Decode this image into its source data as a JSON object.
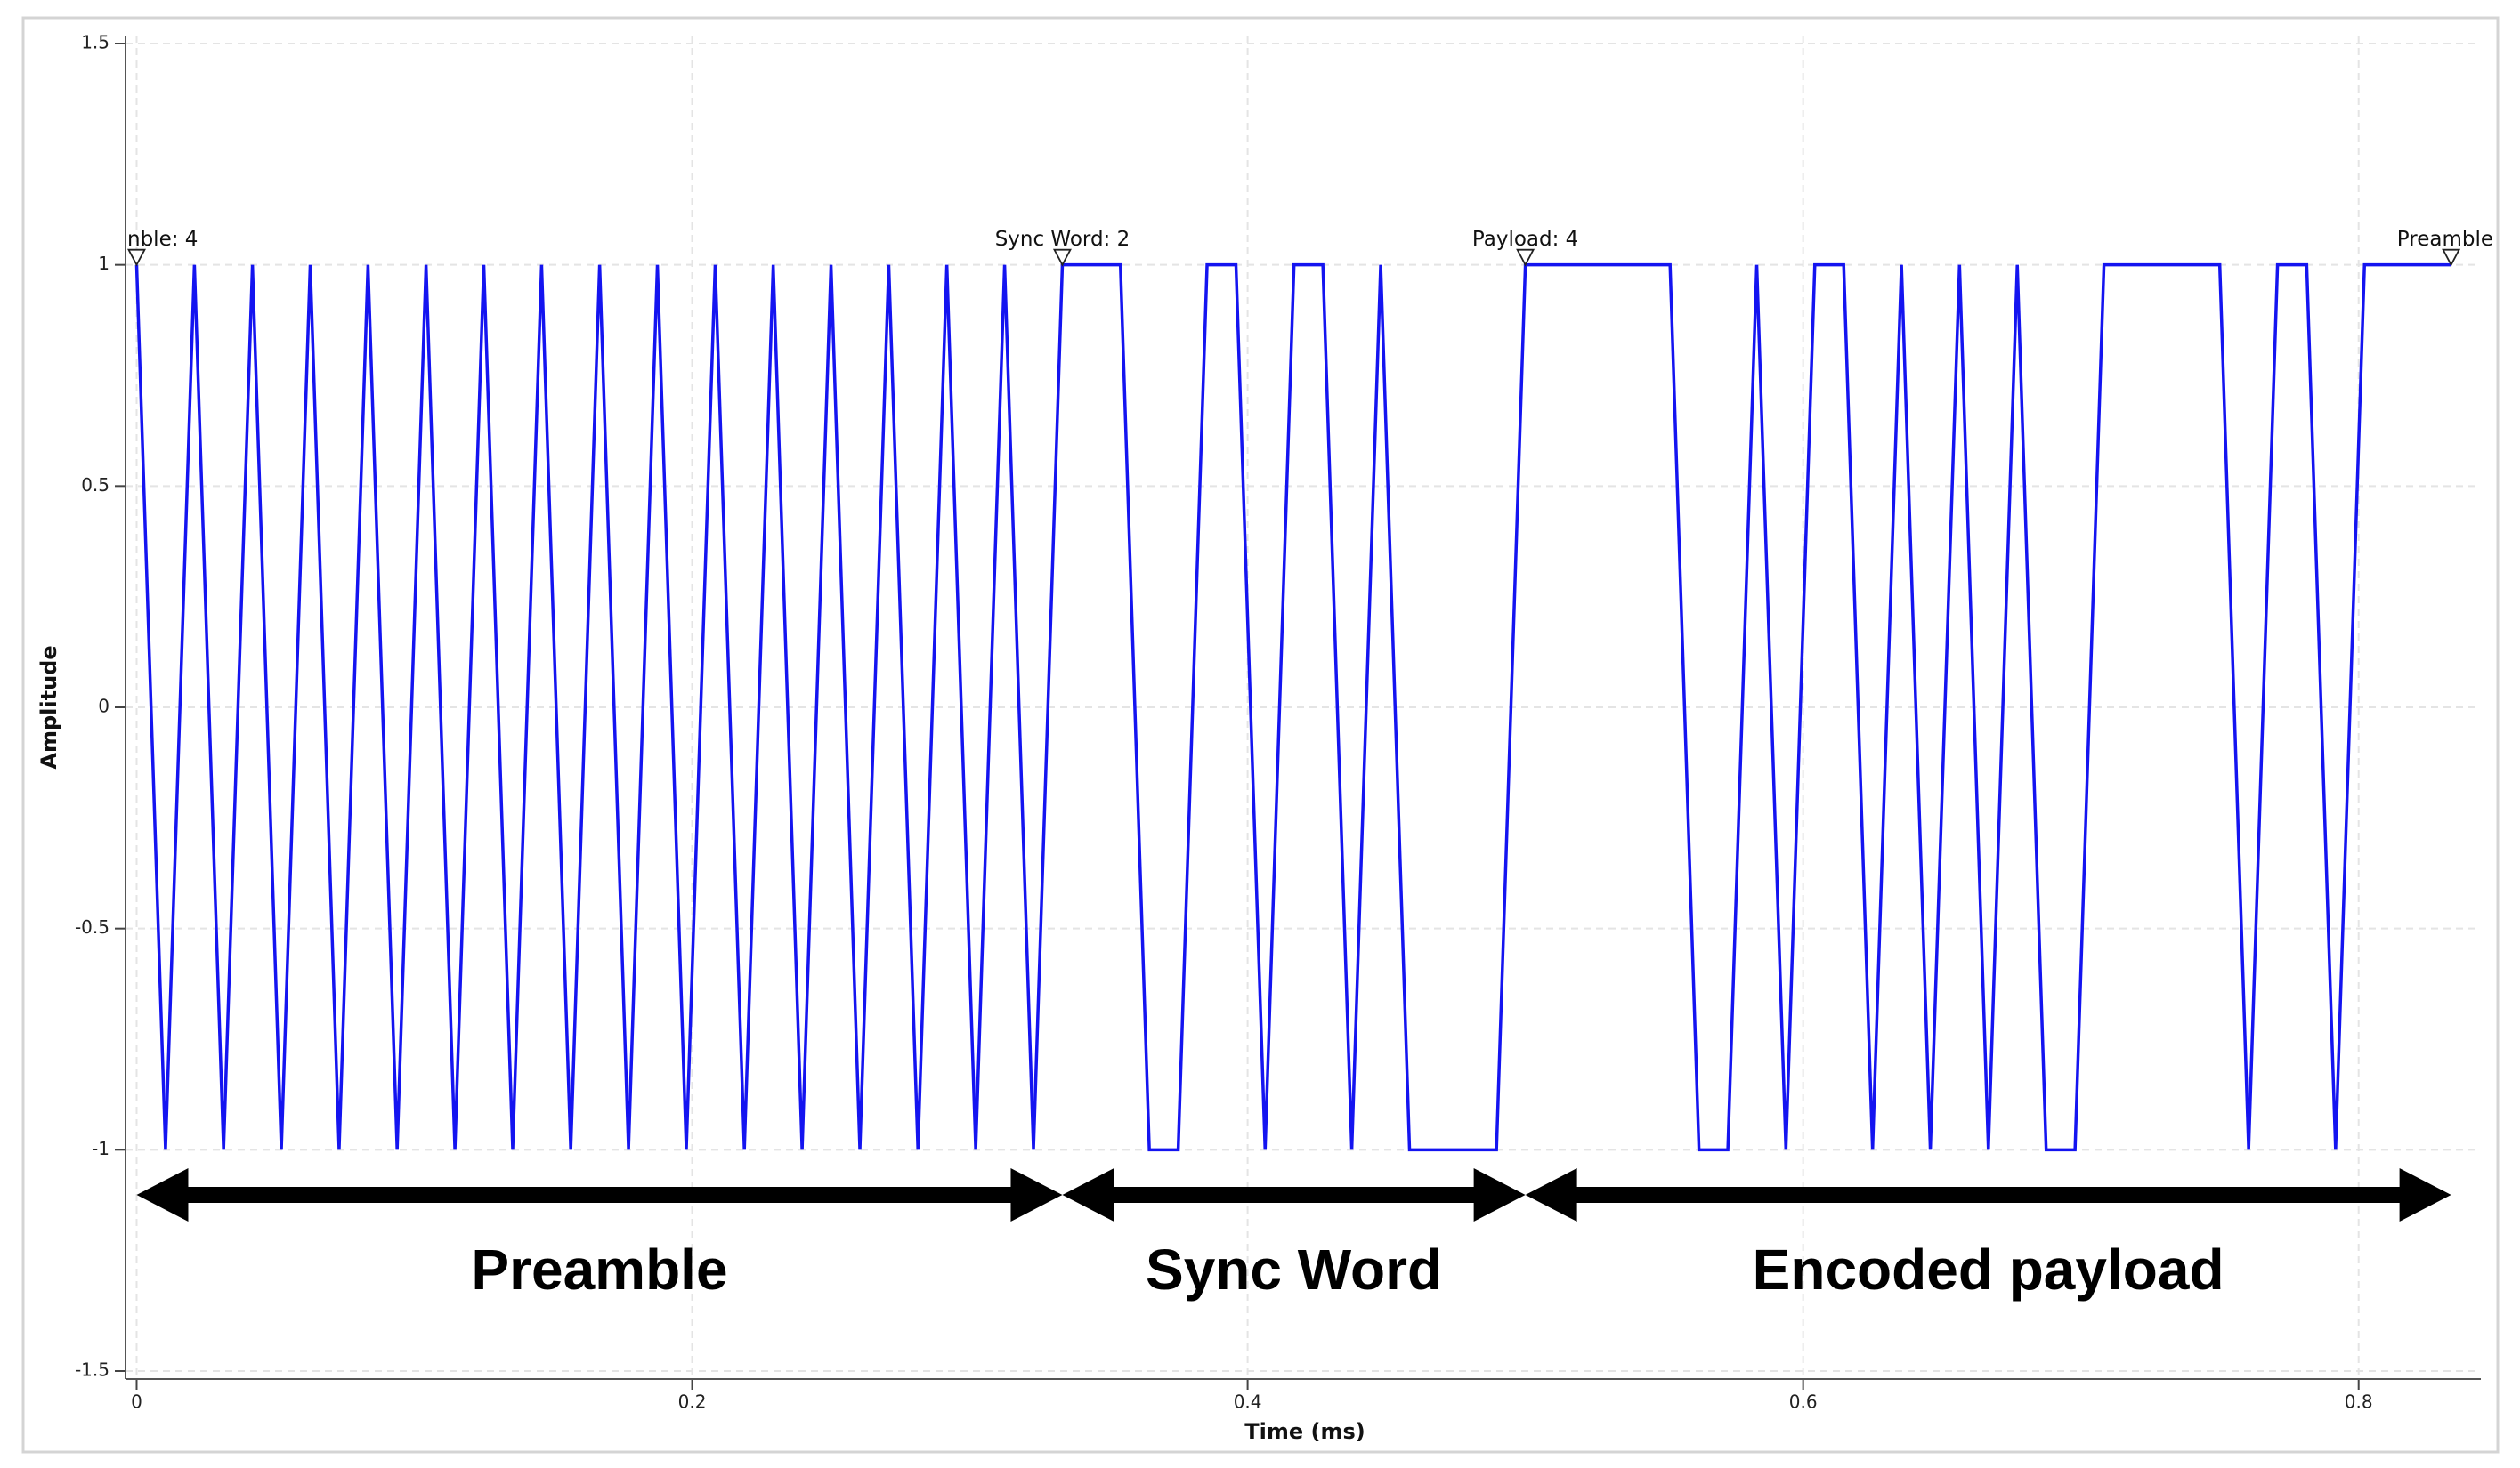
{
  "chart_data": {
    "type": "line",
    "x_label": "Time (ms)",
    "y_label": "Amplitude",
    "x": [
      0,
      0.0104,
      0.0208,
      0.0313,
      0.0417,
      0.0521,
      0.0625,
      0.0729,
      0.0833,
      0.0938,
      0.1042,
      0.1146,
      0.125,
      0.1354,
      0.1458,
      0.1563,
      0.1667,
      0.1771,
      0.1875,
      0.1979,
      0.2083,
      0.2188,
      0.2292,
      0.2396,
      0.25,
      0.2604,
      0.2708,
      0.2813,
      0.2917,
      0.3021,
      0.3125,
      0.3229,
      0.3333,
      0.3438,
      0.3542,
      0.3646,
      0.375,
      0.3854,
      0.3958,
      0.4063,
      0.4167,
      0.4271,
      0.4375,
      0.4479,
      0.4583,
      0.4688,
      0.4792,
      0.4896,
      0.5,
      0.5104,
      0.5208,
      0.5313,
      0.5417,
      0.5521,
      0.5625,
      0.5729,
      0.5833,
      0.5938,
      0.6042,
      0.6146,
      0.625,
      0.6354,
      0.6458,
      0.6563,
      0.6667,
      0.6771,
      0.6875,
      0.6979,
      0.7083,
      0.7188,
      0.7292,
      0.7396,
      0.75,
      0.7604,
      0.7708,
      0.7813,
      0.7917,
      0.8021,
      0.8125,
      0.8229,
      0.8333
    ],
    "series": [
      {
        "color": "#1414f0",
        "values": [
          1,
          -1,
          1,
          -1,
          1,
          -1,
          1,
          -1,
          1,
          -1,
          1,
          -1,
          1,
          -1,
          1,
          -1,
          1,
          -1,
          1,
          -1,
          1,
          -1,
          1,
          -1,
          1,
          -1,
          1,
          -1,
          1,
          -1,
          1,
          -1,
          1,
          1,
          1,
          -1,
          -1,
          1,
          1,
          -1,
          1,
          1,
          -1,
          1,
          -1,
          -1,
          -1,
          -1,
          1,
          1,
          1,
          1,
          1,
          1,
          -1,
          -1,
          1,
          -1,
          1,
          1,
          -1,
          1,
          -1,
          1,
          -1,
          1,
          -1,
          -1,
          1,
          1,
          1,
          1,
          1,
          -1,
          1,
          1,
          -1,
          1,
          1,
          1,
          1
        ]
      }
    ],
    "xlim": [
      -0.004,
      0.844
    ],
    "ylim": [
      -1.5,
      1.5
    ],
    "xticks": [
      0,
      0.2,
      0.4,
      0.6,
      0.8
    ],
    "yticks": [
      -1.5,
      -1,
      -0.5,
      0,
      0.5,
      1,
      1.5
    ],
    "grid": true,
    "annotations": [
      {
        "text": "nble: 4",
        "x": 0,
        "y": 1
      },
      {
        "text": "Sync Word: 2",
        "x": 0.3333,
        "y": 1
      },
      {
        "text": "Payload: 4",
        "x": 0.5,
        "y": 1
      },
      {
        "text": "Preamble",
        "x": 0.8333,
        "y": 1
      }
    ],
    "segments": [
      {
        "label": "Preamble",
        "start": 0,
        "end": 0.3333
      },
      {
        "label": "Sync Word",
        "start": 0.3333,
        "end": 0.5
      },
      {
        "label": "Encoded payload",
        "start": 0.5,
        "end": 0.8333
      }
    ]
  }
}
